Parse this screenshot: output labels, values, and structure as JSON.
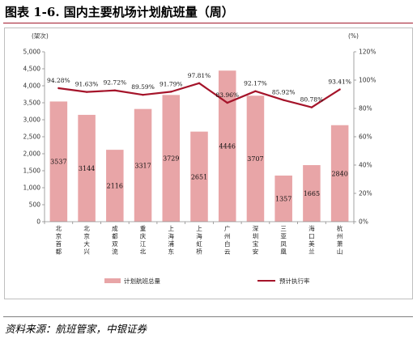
{
  "figure": {
    "title": "图表 1-6.  国内主要机场计划航班量（周）",
    "source": "资料来源：航班管家，中银证券"
  },
  "colors": {
    "bar": "#e8a5a7",
    "line": "#a5142a",
    "title_rule": "#a11a2c"
  },
  "chart_data": {
    "type": "bar",
    "left_axis_unit": "(架次)",
    "right_axis_unit": "(%)",
    "ylim": [
      0,
      5000
    ],
    "yticks": [
      0,
      500,
      1000,
      1500,
      2000,
      2500,
      3000,
      3500,
      4000,
      4500,
      5000
    ],
    "ytick_labels": [
      "0",
      "500",
      "1,000",
      "1,500",
      "2,000",
      "2,500",
      "3,000",
      "3,500",
      "4,000",
      "4,500",
      "5,000"
    ],
    "y2lim": [
      0,
      120
    ],
    "y2ticks": [
      0,
      20,
      40,
      60,
      80,
      100,
      120
    ],
    "y2tick_labels": [
      "0%",
      "20%",
      "40%",
      "60%",
      "80%",
      "100%",
      "120%"
    ],
    "categories": [
      "北京首都",
      "北京大兴",
      "成都双流",
      "重庆江北",
      "上海浦东",
      "上海虹桥",
      "广州白云",
      "深圳宝安",
      "三亚凤凰",
      "海口美兰",
      "杭州萧山"
    ],
    "series": [
      {
        "name": "计划航班总量",
        "kind": "bar",
        "axis": "left",
        "values": [
          3537,
          3144,
          2116,
          3317,
          3729,
          2651,
          4446,
          3707,
          1357,
          1665,
          2840
        ],
        "labels": [
          "3537",
          "3144",
          "2116",
          "3317",
          "3729",
          "2651",
          "4446",
          "3707",
          "1357",
          "1665",
          "2840"
        ]
      },
      {
        "name": "预计执行率",
        "kind": "line",
        "axis": "right",
        "values": [
          94.28,
          91.63,
          92.72,
          89.59,
          91.79,
          97.81,
          83.96,
          92.17,
          85.92,
          80.78,
          93.41
        ],
        "labels": [
          "94.28%",
          "91.63%",
          "92.72%",
          "89.59%",
          "91.79%",
          "97.81%",
          "83.96%",
          "92.17%",
          "85.92%",
          "80.78%",
          "93.41%"
        ]
      }
    ],
    "legend_position": "bottom"
  }
}
